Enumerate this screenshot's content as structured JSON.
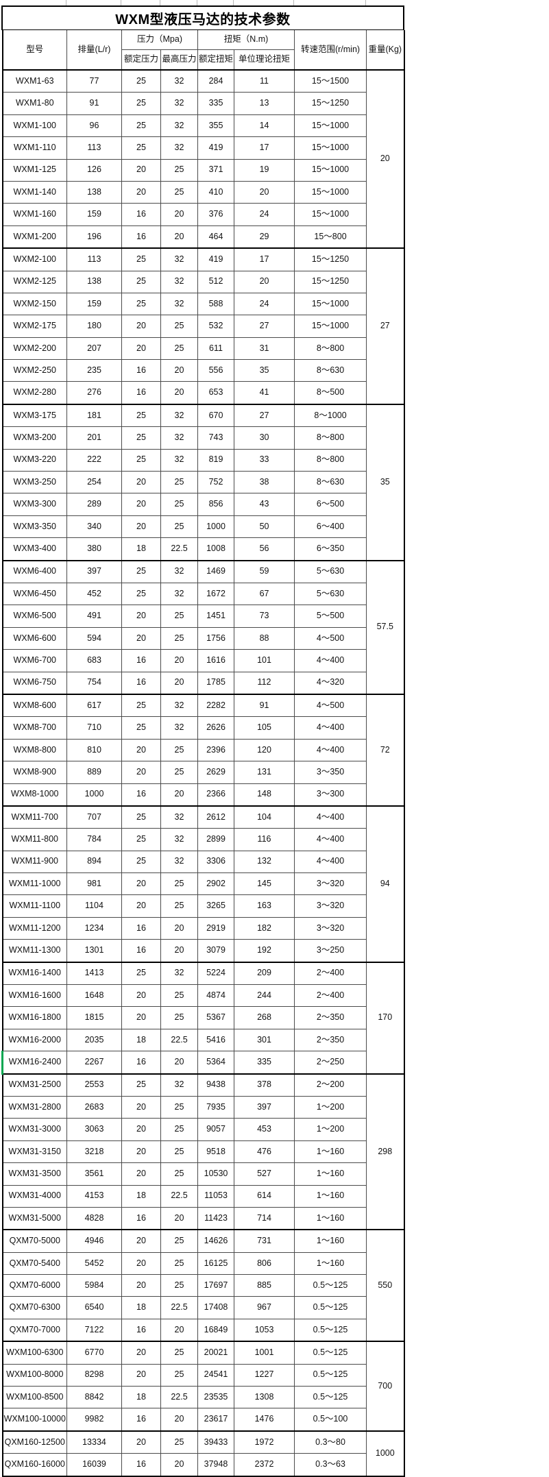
{
  "title": "WXM型液压马达的技术参数",
  "table": {
    "headers": {
      "model": "型号",
      "displacement": "排量(L/r)",
      "pressure_group": "压力（Mpa)",
      "rated_pressure": "额定压力",
      "max_pressure": "最高压力",
      "torque_group": "扭矩（N.m)",
      "rated_torque": "额定扭矩",
      "unit_torque": "单位理论扭矩",
      "speed_range": "转速范围(r/min)",
      "weight": "重量(Kg)"
    },
    "green_marker_row": "WXM16-2400",
    "groups": [
      {
        "weight": "20",
        "rows": [
          [
            "WXM1-63",
            "77",
            "25",
            "32",
            "284",
            "11",
            "15～1500"
          ],
          [
            "WXM1-80",
            "91",
            "25",
            "32",
            "335",
            "13",
            "15～1250"
          ],
          [
            "WXM1-100",
            "96",
            "25",
            "32",
            "355",
            "14",
            "15～1000"
          ],
          [
            "WXM1-110",
            "113",
            "25",
            "32",
            "419",
            "17",
            "15～1000"
          ],
          [
            "WXM1-125",
            "126",
            "20",
            "25",
            "371",
            "19",
            "15～1000"
          ],
          [
            "WXM1-140",
            "138",
            "20",
            "25",
            "410",
            "20",
            "15～1000"
          ],
          [
            "WXM1-160",
            "159",
            "16",
            "20",
            "376",
            "24",
            "15～1000"
          ],
          [
            "WXM1-200",
            "196",
            "16",
            "20",
            "464",
            "29",
            "15～800"
          ]
        ]
      },
      {
        "weight": "27",
        "rows": [
          [
            "WXM2-100",
            "113",
            "25",
            "32",
            "419",
            "17",
            "15～1250"
          ],
          [
            "WXM2-125",
            "138",
            "25",
            "32",
            "512",
            "20",
            "15～1250"
          ],
          [
            "WXM2-150",
            "159",
            "25",
            "32",
            "588",
            "24",
            "15～1000"
          ],
          [
            "WXM2-175",
            "180",
            "20",
            "25",
            "532",
            "27",
            "15～1000"
          ],
          [
            "WXM2-200",
            "207",
            "20",
            "25",
            "611",
            "31",
            "8～800"
          ],
          [
            "WXM2-250",
            "235",
            "16",
            "20",
            "556",
            "35",
            "8～630"
          ],
          [
            "WXM2-280",
            "276",
            "16",
            "20",
            "653",
            "41",
            "8～500"
          ]
        ]
      },
      {
        "weight": "35",
        "rows": [
          [
            "WXM3-175",
            "181",
            "25",
            "32",
            "670",
            "27",
            "8～1000"
          ],
          [
            "WXM3-200",
            "201",
            "25",
            "32",
            "743",
            "30",
            "8～800"
          ],
          [
            "WXM3-220",
            "222",
            "25",
            "32",
            "819",
            "33",
            "8～800"
          ],
          [
            "WXM3-250",
            "254",
            "20",
            "25",
            "752",
            "38",
            "8～630"
          ],
          [
            "WXM3-300",
            "289",
            "20",
            "25",
            "856",
            "43",
            "6～500"
          ],
          [
            "WXM3-350",
            "340",
            "20",
            "25",
            "1000",
            "50",
            "6～400"
          ],
          [
            "WXM3-400",
            "380",
            "18",
            "22.5",
            "1008",
            "56",
            "6～350"
          ]
        ]
      },
      {
        "weight": "57.5",
        "rows": [
          [
            "WXM6-400",
            "397",
            "25",
            "32",
            "1469",
            "59",
            "5～630"
          ],
          [
            "WXM6-450",
            "452",
            "25",
            "32",
            "1672",
            "67",
            "5～630"
          ],
          [
            "WXM6-500",
            "491",
            "20",
            "25",
            "1451",
            "73",
            "5～500"
          ],
          [
            "WXM6-600",
            "594",
            "20",
            "25",
            "1756",
            "88",
            "4～500"
          ],
          [
            "WXM6-700",
            "683",
            "16",
            "20",
            "1616",
            "101",
            "4～400"
          ],
          [
            "WXM6-750",
            "754",
            "16",
            "20",
            "1785",
            "112",
            "4～320"
          ]
        ]
      },
      {
        "weight": "72",
        "rows": [
          [
            "WXM8-600",
            "617",
            "25",
            "32",
            "2282",
            "91",
            "4～500"
          ],
          [
            "WXM8-700",
            "710",
            "25",
            "32",
            "2626",
            "105",
            "4～400"
          ],
          [
            "WXM8-800",
            "810",
            "20",
            "25",
            "2396",
            "120",
            "4～400"
          ],
          [
            "WXM8-900",
            "889",
            "20",
            "25",
            "2629",
            "131",
            "3～350"
          ],
          [
            "WXM8-1000",
            "1000",
            "16",
            "20",
            "2366",
            "148",
            "3～300"
          ]
        ]
      },
      {
        "weight": "94",
        "rows": [
          [
            "WXM11-700",
            "707",
            "25",
            "32",
            "2612",
            "104",
            "4～400"
          ],
          [
            "WXM11-800",
            "784",
            "25",
            "32",
            "2899",
            "116",
            "4～400"
          ],
          [
            "WXM11-900",
            "894",
            "25",
            "32",
            "3306",
            "132",
            "4～400"
          ],
          [
            "WXM11-1000",
            "981",
            "20",
            "25",
            "2902",
            "145",
            "3～320"
          ],
          [
            "WXM11-1100",
            "1104",
            "20",
            "25",
            "3265",
            "163",
            "3～320"
          ],
          [
            "WXM11-1200",
            "1234",
            "16",
            "20",
            "2919",
            "182",
            "3～320"
          ],
          [
            "WXM11-1300",
            "1301",
            "16",
            "20",
            "3079",
            "192",
            "3～250"
          ]
        ]
      },
      {
        "weight": "170",
        "rows": [
          [
            "WXM16-1400",
            "1413",
            "25",
            "32",
            "5224",
            "209",
            "2～400"
          ],
          [
            "WXM16-1600",
            "1648",
            "20",
            "25",
            "4874",
            "244",
            "2～400"
          ],
          [
            "WXM16-1800",
            "1815",
            "20",
            "25",
            "5367",
            "268",
            "2～350"
          ],
          [
            "WXM16-2000",
            "2035",
            "18",
            "22.5",
            "5416",
            "301",
            "2～350"
          ],
          [
            "WXM16-2400",
            "2267",
            "16",
            "20",
            "5364",
            "335",
            "2～250"
          ]
        ]
      },
      {
        "weight": "298",
        "rows": [
          [
            "WXM31-2500",
            "2553",
            "25",
            "32",
            "9438",
            "378",
            "2～200"
          ],
          [
            "WXM31-2800",
            "2683",
            "20",
            "25",
            "7935",
            "397",
            "1～200"
          ],
          [
            "WXM31-3000",
            "3063",
            "20",
            "25",
            "9057",
            "453",
            "1～200"
          ],
          [
            "WXM31-3150",
            "3218",
            "20",
            "25",
            "9518",
            "476",
            "1～160"
          ],
          [
            "WXM31-3500",
            "3561",
            "20",
            "25",
            "10530",
            "527",
            "1～160"
          ],
          [
            "WXM31-4000",
            "4153",
            "18",
            "22.5",
            "11053",
            "614",
            "1～160"
          ],
          [
            "WXM31-5000",
            "4828",
            "16",
            "20",
            "11423",
            "714",
            "1～160"
          ]
        ]
      },
      {
        "weight": "550",
        "rows": [
          [
            "QXM70-5000",
            "4946",
            "20",
            "25",
            "14626",
            "731",
            "1～160"
          ],
          [
            "QXM70-5400",
            "5452",
            "20",
            "25",
            "16125",
            "806",
            "1～160"
          ],
          [
            "QXM70-6000",
            "5984",
            "20",
            "25",
            "17697",
            "885",
            "0.5～125"
          ],
          [
            "QXM70-6300",
            "6540",
            "18",
            "22.5",
            "17408",
            "967",
            "0.5～125"
          ],
          [
            "QXM70-7000",
            "7122",
            "16",
            "20",
            "16849",
            "1053",
            "0.5～125"
          ]
        ]
      },
      {
        "weight": "700",
        "rows": [
          [
            "WXM100-6300",
            "6770",
            "20",
            "25",
            "20021",
            "1001",
            "0.5～125"
          ],
          [
            "WXM100-8000",
            "8298",
            "20",
            "25",
            "24541",
            "1227",
            "0.5～125"
          ],
          [
            "WXM100-8500",
            "8842",
            "18",
            "22.5",
            "23535",
            "1308",
            "0.5～125"
          ],
          [
            "WXM100-10000",
            "9982",
            "16",
            "20",
            "23617",
            "1476",
            "0.5～100"
          ]
        ]
      },
      {
        "weight": "1000",
        "rows": [
          [
            "QXM160-12500",
            "13334",
            "20",
            "25",
            "39433",
            "1972",
            "0.3～80"
          ],
          [
            "QXM160-16000",
            "16039",
            "16",
            "20",
            "37948",
            "2372",
            "0.3～63"
          ]
        ]
      }
    ]
  },
  "colors": {
    "grid_line": "#4a4a4a",
    "heavy_line": "#000000",
    "green_marker": "#00a650",
    "text": "#111111",
    "background": "#ffffff"
  }
}
